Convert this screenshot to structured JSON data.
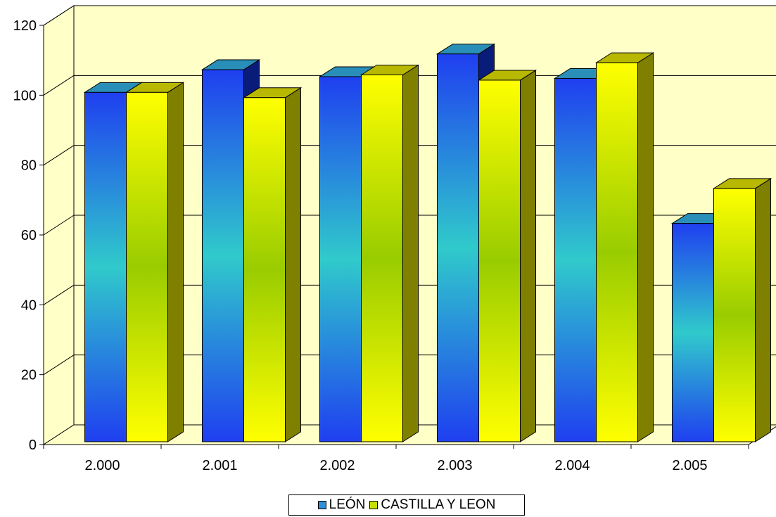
{
  "chart_data": {
    "type": "bar",
    "categories": [
      "2.000",
      "2.001",
      "2.002",
      "2.003",
      "2.004",
      "2.005"
    ],
    "series": [
      {
        "name": "LEÓN",
        "values": [
          100,
          106.5,
          104.5,
          111,
          104,
          62.5
        ],
        "color": "#1f3ff0"
      },
      {
        "name": "CASTILLA Y LEON",
        "values": [
          100,
          98.5,
          105,
          103.5,
          108.5,
          72.5
        ],
        "color": "#f2f200"
      }
    ],
    "ylim": [
      0,
      120
    ],
    "yticks": [
      0,
      20,
      40,
      60,
      80,
      100,
      120
    ],
    "grid": true,
    "legend_position": "bottom",
    "style": "3d-clustered-column",
    "colors": {
      "background": "#ffffc8",
      "floor": "#ffffc8",
      "grid": "#000000"
    }
  }
}
